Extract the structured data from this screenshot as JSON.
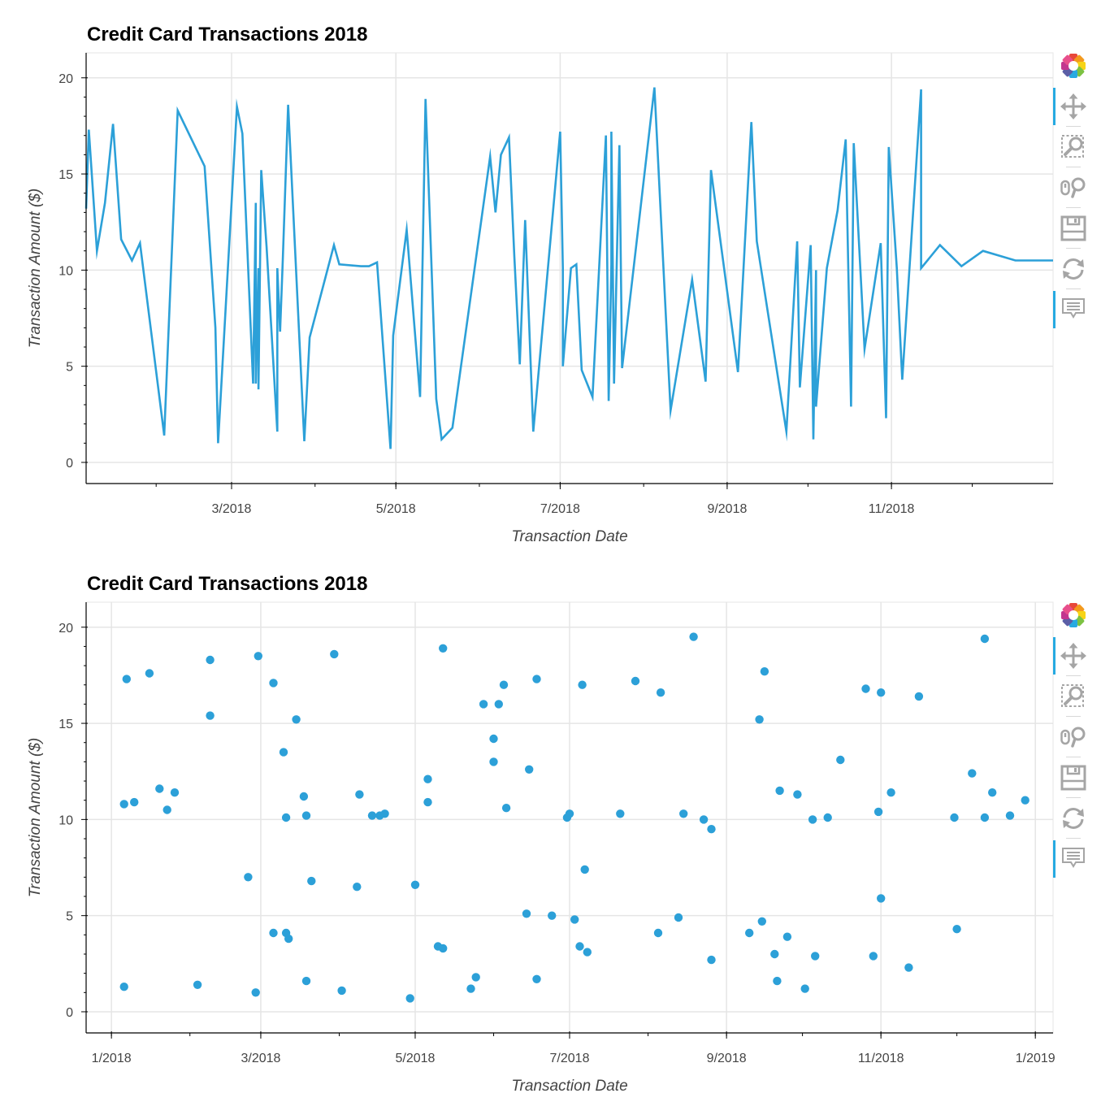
{
  "charts": [
    {
      "title": "Credit Card Transactions 2018",
      "xlabel": "Transaction Date",
      "ylabel": "Transaction Amount ($)"
    },
    {
      "title": "Credit Card Transactions 2018",
      "xlabel": "Transaction Date",
      "ylabel": "Transaction Amount ($)"
    }
  ],
  "toolbar": {
    "tools": [
      "bokeh-logo-icon",
      "pan-icon",
      "box-zoom-icon",
      "wheel-zoom-icon",
      "save-icon",
      "reset-icon",
      "hover-icon"
    ],
    "active": [
      "pan-icon",
      "hover-icon"
    ],
    "accent_color": "#26aae1"
  },
  "chart_data": [
    {
      "type": "line",
      "title": "Credit Card Transactions 2018",
      "xlabel": "Transaction Date",
      "ylabel": "Transaction Amount ($)",
      "x_type": "date",
      "xlim": [
        "2018-01-06",
        "2018-12-31"
      ],
      "ylim": [
        -1.1,
        21.3
      ],
      "x_ticks": [
        {
          "date": "2018-03-01",
          "label": "3/2018"
        },
        {
          "date": "2018-05-01",
          "label": "5/2018"
        },
        {
          "date": "2018-07-01",
          "label": "7/2018"
        },
        {
          "date": "2018-09-01",
          "label": "9/2018"
        },
        {
          "date": "2018-11-01",
          "label": "11/2018"
        }
      ],
      "y_ticks": [
        0,
        5,
        10,
        15,
        20
      ],
      "color": "#2ca0d8",
      "grid": true,
      "legend": "none",
      "series": [
        {
          "x": [
            "2018-01-06",
            "2018-01-07",
            "2018-01-10",
            "2018-01-13",
            "2018-01-16",
            "2018-01-19",
            "2018-01-23",
            "2018-01-26",
            "2018-02-04",
            "2018-02-09",
            "2018-02-19",
            "2018-02-23",
            "2018-02-24",
            "2018-03-03",
            "2018-03-05",
            "2018-03-09",
            "2018-03-10",
            "2018-03-10",
            "2018-03-11",
            "2018-03-11",
            "2018-03-12",
            "2018-03-14",
            "2018-03-18",
            "2018-03-18",
            "2018-03-19",
            "2018-03-20",
            "2018-03-22",
            "2018-03-28",
            "2018-03-30",
            "2018-04-08",
            "2018-04-10",
            "2018-04-18",
            "2018-04-21",
            "2018-04-24",
            "2018-04-29",
            "2018-04-30",
            "2018-05-05",
            "2018-05-10",
            "2018-05-12",
            "2018-05-16",
            "2018-05-18",
            "2018-05-22",
            "2018-06-05",
            "2018-06-07",
            "2018-06-09",
            "2018-06-12",
            "2018-06-14",
            "2018-06-16",
            "2018-06-18",
            "2018-06-21",
            "2018-07-01",
            "2018-07-02",
            "2018-07-02",
            "2018-07-05",
            "2018-07-07",
            "2018-07-09",
            "2018-07-13",
            "2018-07-18",
            "2018-07-19",
            "2018-07-20",
            "2018-07-20",
            "2018-07-21",
            "2018-07-23",
            "2018-07-24",
            "2018-08-05",
            "2018-08-11",
            "2018-08-19",
            "2018-08-24",
            "2018-08-26",
            "2018-09-05",
            "2018-09-10",
            "2018-09-12",
            "2018-09-23",
            "2018-09-27",
            "2018-09-28",
            "2018-10-02",
            "2018-10-03",
            "2018-10-04",
            "2018-10-04",
            "2018-10-08",
            "2018-10-12",
            "2018-10-15",
            "2018-10-17",
            "2018-10-18",
            "2018-10-22",
            "2018-10-28",
            "2018-10-30",
            "2018-10-31",
            "2018-11-03",
            "2018-11-05",
            "2018-11-12",
            "2018-11-12",
            "2018-11-19",
            "2018-11-27",
            "2018-12-05",
            "2018-12-17",
            "2018-12-21",
            "2018-12-23",
            "2018-12-30",
            "2018-12-31"
          ],
          "y": [
            13.2,
            17.3,
            11.0,
            13.5,
            17.6,
            11.6,
            10.5,
            11.4,
            1.4,
            18.3,
            15.4,
            7.0,
            1.0,
            18.5,
            17.1,
            4.1,
            13.5,
            4.1,
            10.1,
            3.8,
            15.2,
            11.2,
            1.6,
            10.1,
            6.8,
            10.5,
            18.6,
            1.1,
            6.5,
            11.3,
            10.3,
            10.2,
            10.2,
            10.4,
            0.7,
            6.6,
            12.1,
            3.4,
            18.9,
            3.3,
            1.2,
            1.8,
            15.9,
            13.0,
            16.0,
            16.9,
            10.7,
            5.1,
            12.6,
            1.6,
            17.2,
            10.1,
            5.0,
            10.1,
            10.3,
            4.8,
            3.4,
            17.0,
            3.2,
            10.3,
            17.2,
            4.1,
            16.5,
            4.9,
            19.5,
            2.7,
            9.5,
            4.2,
            15.2,
            4.7,
            17.7,
            11.5,
            1.6,
            11.5,
            3.9,
            11.3,
            1.2,
            10.0,
            2.9,
            10.1,
            13.1,
            16.8,
            2.9,
            16.6,
            5.9,
            11.4,
            2.3,
            16.4,
            10.1,
            4.3,
            19.4,
            10.1,
            11.3,
            10.2,
            11.0,
            10.5,
            10.5,
            10.5,
            10.5,
            10.5
          ]
        }
      ]
    },
    {
      "type": "scatter",
      "title": "Credit Card Transactions 2018",
      "xlabel": "Transaction Date",
      "ylabel": "Transaction Amount ($)",
      "x_type": "date",
      "xlim": [
        "2017-12-22",
        "2019-01-08"
      ],
      "ylim": [
        -1.1,
        21.3
      ],
      "x_ticks": [
        {
          "date": "2018-01-01",
          "label": "1/2018"
        },
        {
          "date": "2018-03-01",
          "label": "3/2018"
        },
        {
          "date": "2018-05-01",
          "label": "5/2018"
        },
        {
          "date": "2018-07-01",
          "label": "7/2018"
        },
        {
          "date": "2018-09-01",
          "label": "9/2018"
        },
        {
          "date": "2018-11-01",
          "label": "11/2018"
        },
        {
          "date": "2019-01-01",
          "label": "1/2019"
        }
      ],
      "y_ticks": [
        0,
        5,
        10,
        15,
        20
      ],
      "color": "#2ca0d8",
      "grid": true,
      "legend": "none",
      "series": [
        {
          "points": [
            [
              "2018-01-06",
              1.3
            ],
            [
              "2018-01-06",
              10.8
            ],
            [
              "2018-01-07",
              17.3
            ],
            [
              "2018-01-10",
              10.9
            ],
            [
              "2018-01-16",
              17.6
            ],
            [
              "2018-01-20",
              11.6
            ],
            [
              "2018-01-23",
              10.5
            ],
            [
              "2018-01-26",
              11.4
            ],
            [
              "2018-02-04",
              1.4
            ],
            [
              "2018-02-09",
              18.3
            ],
            [
              "2018-02-09",
              15.4
            ],
            [
              "2018-02-24",
              7.0
            ],
            [
              "2018-02-27",
              1.0
            ],
            [
              "2018-02-28",
              18.5
            ],
            [
              "2018-03-06",
              17.1
            ],
            [
              "2018-03-06",
              4.1
            ],
            [
              "2018-03-10",
              13.5
            ],
            [
              "2018-03-11",
              4.1
            ],
            [
              "2018-03-11",
              10.1
            ],
            [
              "2018-03-12",
              3.8
            ],
            [
              "2018-03-15",
              15.2
            ],
            [
              "2018-03-18",
              11.2
            ],
            [
              "2018-03-19",
              10.2
            ],
            [
              "2018-03-19",
              1.6
            ],
            [
              "2018-03-21",
              6.8
            ],
            [
              "2018-03-30",
              18.6
            ],
            [
              "2018-04-02",
              1.1
            ],
            [
              "2018-04-08",
              6.5
            ],
            [
              "2018-04-09",
              11.3
            ],
            [
              "2018-04-14",
              10.2
            ],
            [
              "2018-04-17",
              10.2
            ],
            [
              "2018-04-19",
              10.3
            ],
            [
              "2018-04-29",
              0.7
            ],
            [
              "2018-05-01",
              6.6
            ],
            [
              "2018-05-06",
              12.1
            ],
            [
              "2018-05-06",
              10.9
            ],
            [
              "2018-05-10",
              3.4
            ],
            [
              "2018-05-12",
              3.3
            ],
            [
              "2018-05-12",
              18.9
            ],
            [
              "2018-05-23",
              1.2
            ],
            [
              "2018-05-25",
              1.8
            ],
            [
              "2018-05-28",
              16.0
            ],
            [
              "2018-06-01",
              14.2
            ],
            [
              "2018-06-01",
              13.0
            ],
            [
              "2018-06-03",
              16.0
            ],
            [
              "2018-06-05",
              17.0
            ],
            [
              "2018-06-06",
              10.6
            ],
            [
              "2018-06-14",
              5.1
            ],
            [
              "2018-06-15",
              12.6
            ],
            [
              "2018-06-18",
              1.7
            ],
            [
              "2018-06-18",
              17.3
            ],
            [
              "2018-06-24",
              5.0
            ],
            [
              "2018-06-30",
              10.1
            ],
            [
              "2018-07-01",
              10.3
            ],
            [
              "2018-07-03",
              4.8
            ],
            [
              "2018-07-05",
              3.4
            ],
            [
              "2018-07-06",
              17.0
            ],
            [
              "2018-07-07",
              7.4
            ],
            [
              "2018-07-08",
              3.1
            ],
            [
              "2018-07-21",
              10.3
            ],
            [
              "2018-07-27",
              17.2
            ],
            [
              "2018-08-05",
              4.1
            ],
            [
              "2018-08-06",
              16.6
            ],
            [
              "2018-08-13",
              4.9
            ],
            [
              "2018-08-15",
              10.3
            ],
            [
              "2018-08-19",
              19.5
            ],
            [
              "2018-08-23",
              10.0
            ],
            [
              "2018-08-26",
              2.7
            ],
            [
              "2018-08-26",
              9.5
            ],
            [
              "2018-09-10",
              4.1
            ],
            [
              "2018-09-14",
              15.2
            ],
            [
              "2018-09-15",
              4.7
            ],
            [
              "2018-09-16",
              17.7
            ],
            [
              "2018-09-20",
              3.0
            ],
            [
              "2018-09-21",
              1.6
            ],
            [
              "2018-09-22",
              11.5
            ],
            [
              "2018-09-25",
              3.9
            ],
            [
              "2018-09-29",
              11.3
            ],
            [
              "2018-10-02",
              1.2
            ],
            [
              "2018-10-05",
              10.0
            ],
            [
              "2018-10-06",
              2.9
            ],
            [
              "2018-10-11",
              10.1
            ],
            [
              "2018-10-16",
              13.1
            ],
            [
              "2018-10-26",
              16.8
            ],
            [
              "2018-10-29",
              2.9
            ],
            [
              "2018-10-31",
              10.4
            ],
            [
              "2018-11-01",
              16.6
            ],
            [
              "2018-11-01",
              5.9
            ],
            [
              "2018-11-05",
              11.4
            ],
            [
              "2018-11-12",
              2.3
            ],
            [
              "2018-11-16",
              16.4
            ],
            [
              "2018-11-30",
              10.1
            ],
            [
              "2018-12-01",
              4.3
            ],
            [
              "2018-12-07",
              12.4
            ],
            [
              "2018-12-12",
              19.4
            ],
            [
              "2018-12-12",
              10.1
            ],
            [
              "2018-12-15",
              11.4
            ],
            [
              "2018-12-22",
              10.2
            ],
            [
              "2018-12-28",
              11.0
            ]
          ]
        }
      ]
    }
  ]
}
